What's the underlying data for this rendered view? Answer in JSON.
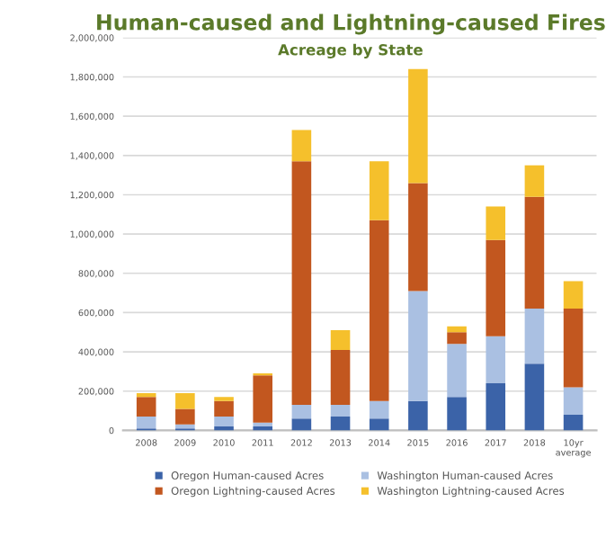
{
  "chart_data": {
    "type": "bar",
    "stacked": true,
    "title": "Human-caused and Lightning-caused Fires",
    "subtitle": "Acreage by State",
    "categories": [
      "2008",
      "2009",
      "2010",
      "2011",
      "2012",
      "2013",
      "2014",
      "2015",
      "2016",
      "2017",
      "2018",
      "10yr average"
    ],
    "series": [
      {
        "name": "Oregon Human-caused Acres",
        "color": "#3b63a8",
        "values": [
          10000,
          10000,
          20000,
          20000,
          60000,
          70000,
          60000,
          150000,
          170000,
          240000,
          340000,
          80000
        ]
      },
      {
        "name": "Washington Human-caused Acres",
        "color": "#aac0e2",
        "values": [
          60000,
          20000,
          50000,
          20000,
          70000,
          60000,
          90000,
          560000,
          270000,
          240000,
          280000,
          140000
        ]
      },
      {
        "name": "Oregon Lightning-caused Acres",
        "color": "#c2571f",
        "values": [
          100000,
          80000,
          80000,
          240000,
          1240000,
          280000,
          920000,
          550000,
          60000,
          490000,
          570000,
          400000
        ]
      },
      {
        "name": "Washington Lightning-caused Acres",
        "color": "#f5c02c",
        "values": [
          20000,
          80000,
          20000,
          10000,
          160000,
          100000,
          300000,
          580000,
          30000,
          170000,
          160000,
          140000
        ]
      }
    ],
    "ylim": [
      0,
      2000000
    ],
    "yticks": [
      {
        "value": 0,
        "label": "0"
      },
      {
        "value": 200000,
        "label": "200,000"
      },
      {
        "value": 400000,
        "label": "400,000"
      },
      {
        "value": 600000,
        "label": "600,000"
      },
      {
        "value": 800000,
        "label": "800,000"
      },
      {
        "value": 1000000,
        "label": "1,000,000"
      },
      {
        "value": 1200000,
        "label": "1,200,000"
      },
      {
        "value": 1400000,
        "label": "1,400,000"
      },
      {
        "value": 1600000,
        "label": "1,600,000"
      },
      {
        "value": 1800000,
        "label": "1,800,000"
      },
      {
        "value": 2000000,
        "label": "2,000,000"
      }
    ],
    "grid": "y",
    "legend": "bottom"
  }
}
